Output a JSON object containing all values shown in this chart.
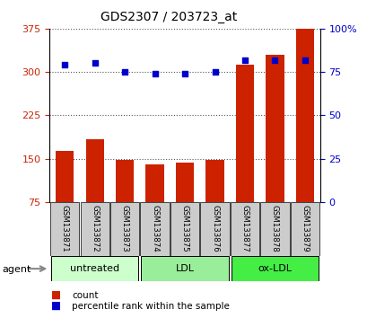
{
  "title": "GDS2307 / 203723_at",
  "samples": [
    "GSM133871",
    "GSM133872",
    "GSM133873",
    "GSM133874",
    "GSM133875",
    "GSM133876",
    "GSM133877",
    "GSM133878",
    "GSM133879"
  ],
  "counts": [
    163,
    183,
    148,
    140,
    143,
    147,
    312,
    330,
    375
  ],
  "percentiles": [
    79,
    80,
    75,
    74,
    74,
    75,
    82,
    82,
    82
  ],
  "ylim_left": [
    75,
    375
  ],
  "ylim_right": [
    0,
    100
  ],
  "yticks_left": [
    75,
    150,
    225,
    300,
    375
  ],
  "yticks_right": [
    0,
    25,
    50,
    75,
    100
  ],
  "bar_color": "#cc2200",
  "dot_color": "#0000cc",
  "groups": [
    {
      "label": "untreated",
      "indices": [
        0,
        1,
        2
      ],
      "color": "#ccffcc"
    },
    {
      "label": "LDL",
      "indices": [
        3,
        4,
        5
      ],
      "color": "#99ee99"
    },
    {
      "label": "ox-LDL",
      "indices": [
        6,
        7,
        8
      ],
      "color": "#44ee44"
    }
  ],
  "agent_label": "agent",
  "legend_count": "count",
  "legend_percentile": "percentile rank within the sample",
  "grid_color": "#555555",
  "tick_label_color_left": "#cc2200",
  "tick_label_color_right": "#0000cc",
  "sample_box_color": "#cccccc"
}
